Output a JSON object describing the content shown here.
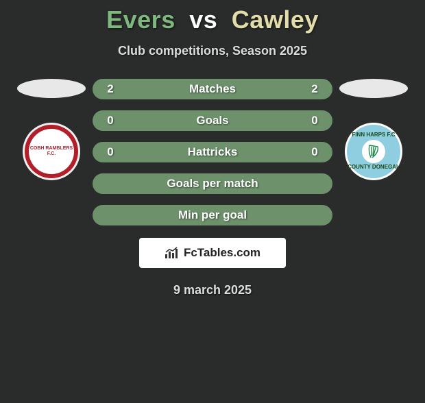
{
  "colors": {
    "background": "#2a2c2b",
    "text_light": "#ffffff",
    "title_player1": "#7fb87e",
    "title_vs": "#ffffff",
    "title_player2": "#e2dca9",
    "subtitle": "#dddddd",
    "ellipse": "#e8e8e8",
    "bar_matches": "#6c916b",
    "bar_goals": "#6c916b",
    "bar_hattricks": "#6c916b",
    "bar_gpm": "#6c916b",
    "bar_mpg": "#6c916b",
    "bar_text": "#ffffff",
    "crest_left_bg": "#b11f2b",
    "crest_left_text": "#f5d060",
    "crest_right_bg": "#8fcde0",
    "crest_right_text": "#1a4a1a",
    "harp_color": "#1e8a4a",
    "badge_bg": "#ffffff",
    "badge_text": "#222222",
    "date": "#dddddd"
  },
  "title": {
    "player1": "Evers",
    "vs": "vs",
    "player2": "Cawley"
  },
  "subtitle": "Club competitions, Season 2025",
  "crests": {
    "left_text": "COBH RAMBLERS F.C.",
    "right_top": "FINN HARPS F.C",
    "right_bottom": "COUNTY DONEGAL"
  },
  "stats": [
    {
      "label": "Matches",
      "v1": "2",
      "v2": "2",
      "color_key": "bar_matches"
    },
    {
      "label": "Goals",
      "v1": "0",
      "v2": "0",
      "color_key": "bar_goals"
    },
    {
      "label": "Hattricks",
      "v1": "0",
      "v2": "0",
      "color_key": "bar_hattricks"
    },
    {
      "label": "Goals per match",
      "v1": "",
      "v2": "",
      "color_key": "bar_gpm"
    },
    {
      "label": "Min per goal",
      "v1": "",
      "v2": "",
      "color_key": "bar_mpg"
    }
  ],
  "badge": {
    "text": "FcTables.com",
    "icon": "chart-icon"
  },
  "date": "9 march 2025"
}
